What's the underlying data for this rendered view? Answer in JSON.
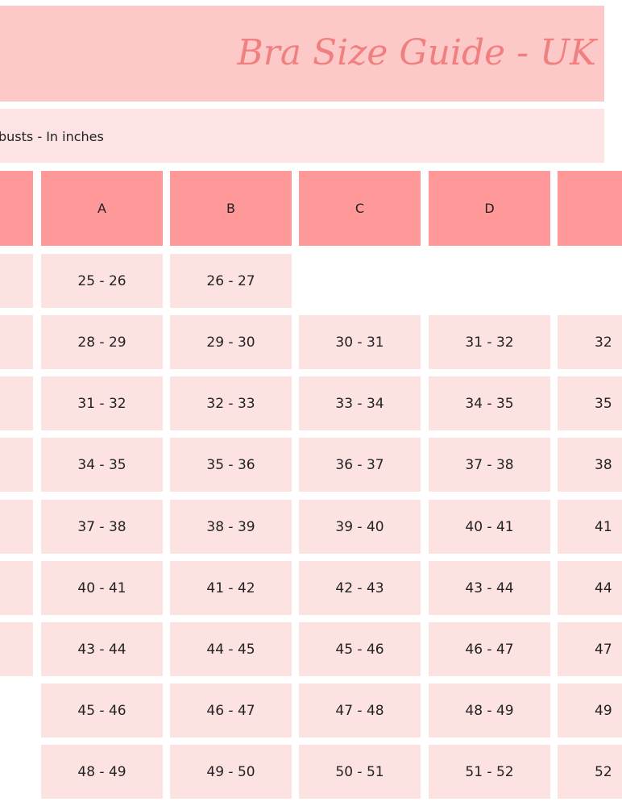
{
  "title": "Bra Size Guide - UK",
  "subtitle": "busts - In inches",
  "columns": [
    "A",
    "B",
    "C",
    "D",
    ""
  ],
  "rows": [
    [
      "25 - 26",
      "26 - 27",
      "",
      "",
      ""
    ],
    [
      "28 - 29",
      "29 - 30",
      "30 - 31",
      "31 - 32",
      "32"
    ],
    [
      "31 - 32",
      "32 - 33",
      "33 - 34",
      "34 - 35",
      "35"
    ],
    [
      "34 - 35",
      "35 - 36",
      "36 - 37",
      "37 - 38",
      "38"
    ],
    [
      "37 - 38",
      "38 - 39",
      "39 - 40",
      "40 - 41",
      "41"
    ],
    [
      "40 - 41",
      "41 - 42",
      "42 - 43",
      "43 - 44",
      "44"
    ],
    [
      "43 - 44",
      "44 - 45",
      "45 - 46",
      "46 - 47",
      "47"
    ],
    [
      "45 - 46",
      "46 - 47",
      "47 - 48",
      "48 - 49",
      "49"
    ],
    [
      "48 - 49",
      "49 - 50",
      "50 - 51",
      "51 - 52",
      "52"
    ]
  ]
}
